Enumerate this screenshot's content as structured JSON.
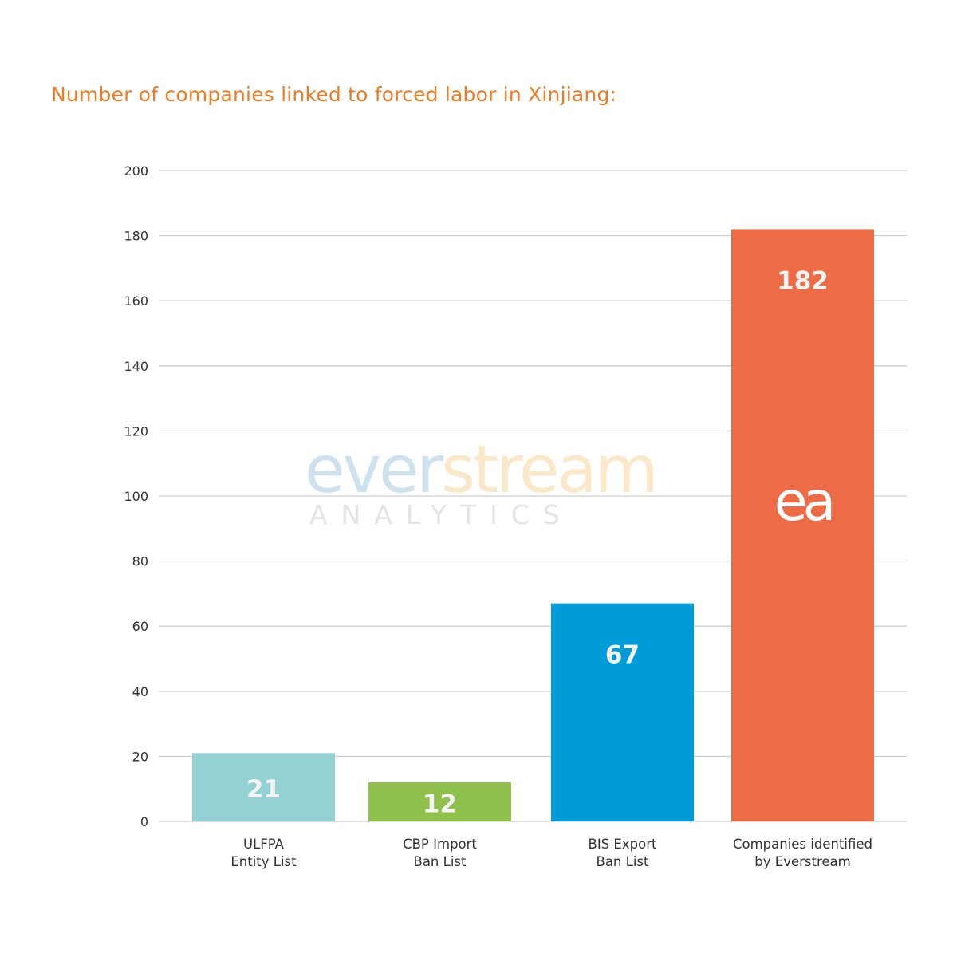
{
  "chart_data": {
    "type": "bar",
    "title": "Number of companies linked to forced labor in Xinjiang:",
    "xlabel": "",
    "ylabel": "",
    "ylim": [
      0,
      200
    ],
    "yticks": [
      0,
      20,
      40,
      60,
      80,
      100,
      120,
      140,
      160,
      180,
      200
    ],
    "grid": true,
    "categories": [
      [
        "ULFPA",
        "Entity List"
      ],
      [
        "CBP Import",
        "Ban List"
      ],
      [
        "BIS Export",
        "Ban List"
      ],
      [
        "Companies identified",
        "by Everstream"
      ]
    ],
    "values": [
      21,
      12,
      67,
      182
    ],
    "colors": [
      "#94d1d5",
      "#8fc04c",
      "#009cd9",
      "#ed6b45"
    ],
    "title_color": "#ee7a22"
  },
  "watermark": {
    "word_a": "ever",
    "word_b": "stream",
    "sub": "ANALYTICS",
    "color_a": "#cde2ee",
    "color_b": "#fbe8c9"
  },
  "logo": {
    "text": "ea"
  }
}
